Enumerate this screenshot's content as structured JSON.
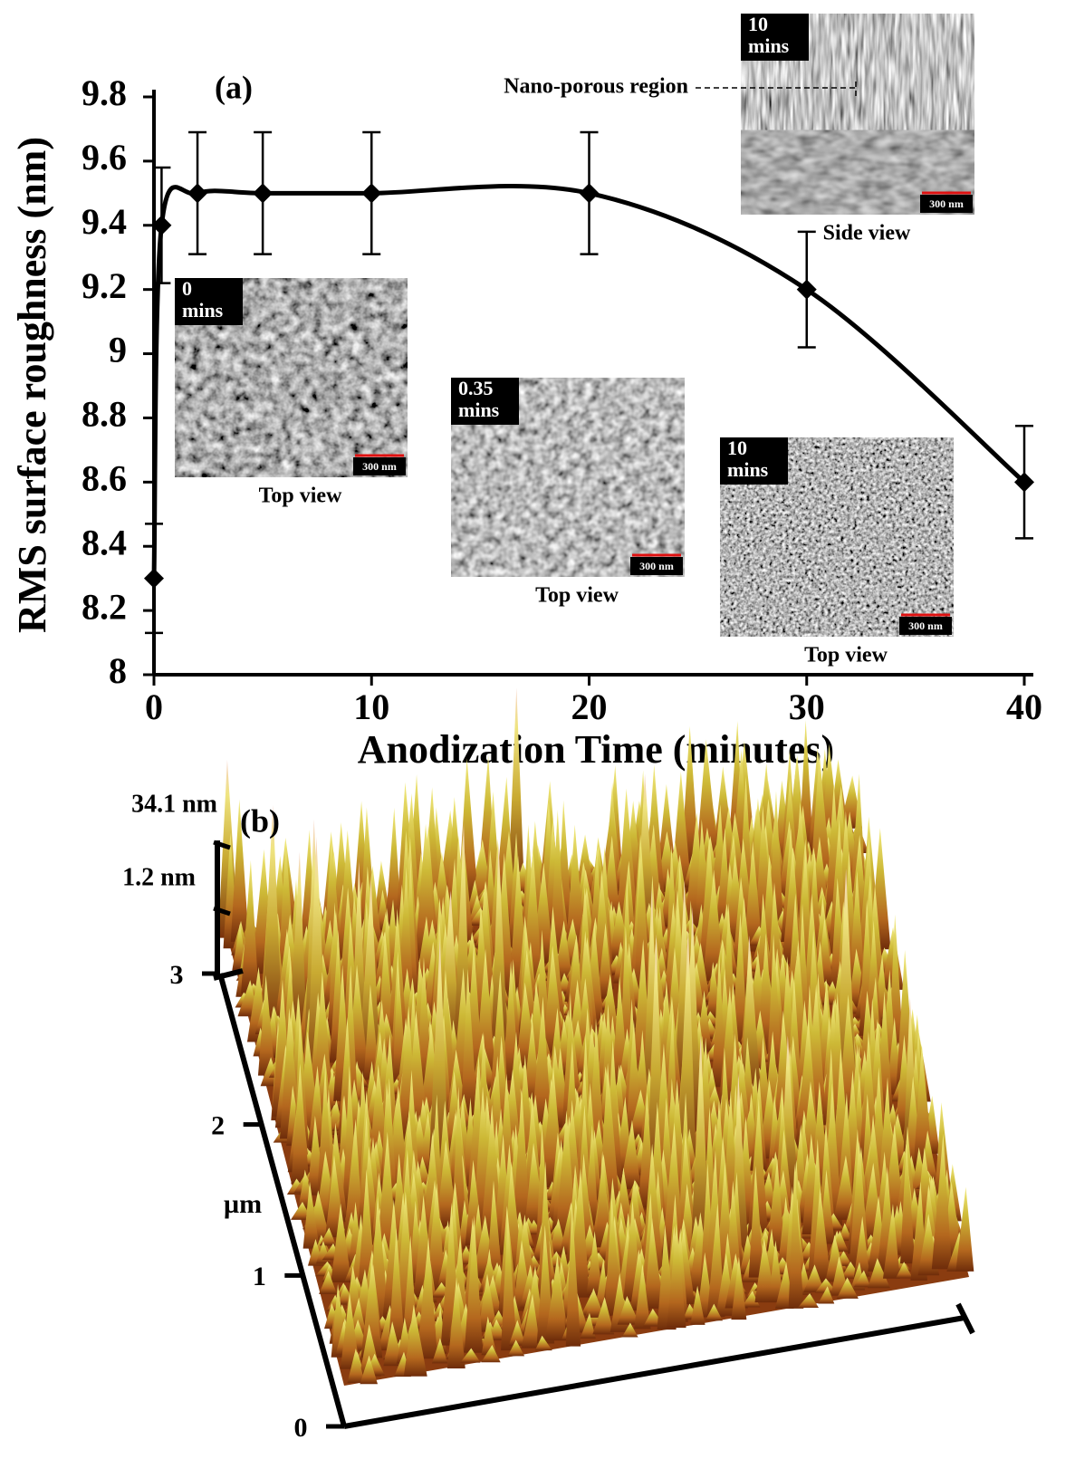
{
  "chart_data": [
    {
      "type": "line",
      "title": "(a)",
      "xlabel": "Anodization Time (minutes)",
      "ylabel": "RMS surface roughness (nm)",
      "x": [
        0,
        0.35,
        2,
        5,
        10,
        20,
        30,
        40
      ],
      "values": [
        8.3,
        9.4,
        9.5,
        9.5,
        9.5,
        9.5,
        9.2,
        8.6
      ],
      "errors": [
        0.17,
        0.18,
        0.19,
        0.19,
        0.19,
        0.19,
        0.18,
        0.175
      ],
      "color": "#000000",
      "xlim": [
        0,
        40
      ],
      "xticks": [
        0,
        10,
        20,
        30,
        40
      ],
      "ylim": [
        8,
        9.8
      ],
      "yticks": [
        8,
        8.2,
        8.4,
        8.6,
        8.8,
        9,
        9.2,
        9.4,
        9.6,
        9.8
      ],
      "insets": [
        {
          "label_lines": [
            "0",
            "mins"
          ],
          "caption": "Top view",
          "scale_bar": "300 nm"
        },
        {
          "label_lines": [
            "0.35",
            "mins"
          ],
          "caption": "Top view",
          "scale_bar": "300 nm"
        },
        {
          "label_lines": [
            "10",
            "mins"
          ],
          "caption": "Top view",
          "scale_bar": "300 nm"
        },
        {
          "label_lines": [
            "10",
            "mins"
          ],
          "caption": "Side view",
          "scale_bar": "300 nm",
          "annotation": "Nano-porous region"
        }
      ]
    },
    {
      "type": "surface3d",
      "title": "(b)",
      "ylabel": "µm",
      "ylim": [
        0,
        3
      ],
      "yticks": [
        0,
        1,
        2,
        3
      ],
      "zlim": [
        1.2,
        34.1
      ],
      "zticks": [
        {
          "value": 1.2,
          "label": "1.2 nm"
        },
        {
          "value": 34.1,
          "label": "34.1 nm"
        }
      ]
    }
  ]
}
